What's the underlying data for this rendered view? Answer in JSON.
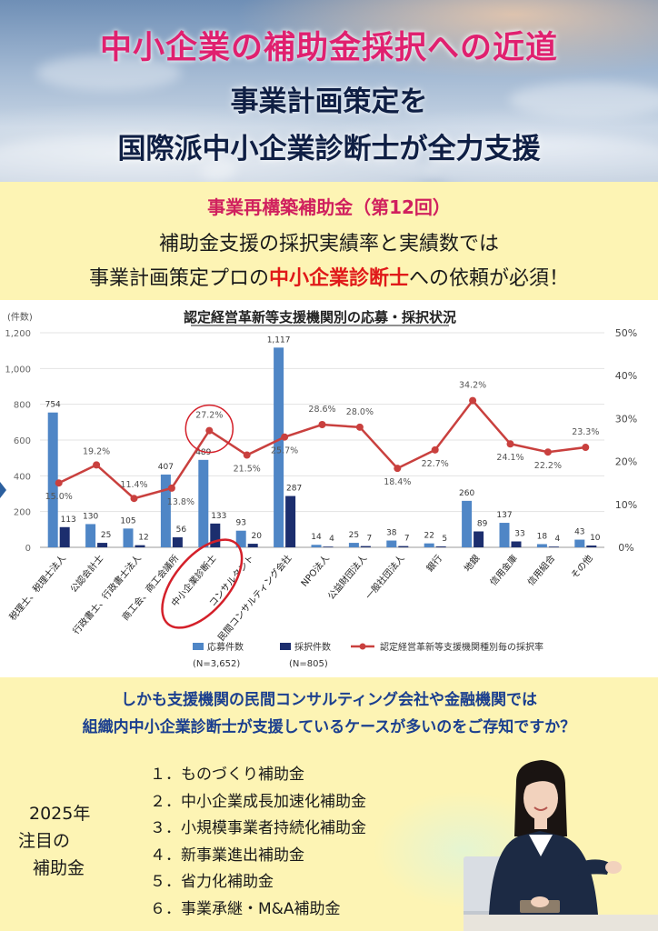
{
  "hero": {
    "title": "中小企業の補助金採択への近道",
    "subtitle_line1": "事業計画策定を",
    "subtitle_line2": "国際派中小企業診断士が全力支援"
  },
  "intro": {
    "heading": "事業再構築補助金（第12回）",
    "line1": "補助金支援の採択実績率と実績数では",
    "line2_pre": "事業計画策定プロの",
    "line2_highlight": "中小企業診断士",
    "line2_post": "への依頼が必須！"
  },
  "chart_data": {
    "type": "bar",
    "title": "認定経営革新等支援機関別の応募・採択状況",
    "ylabel": "(件数)",
    "ylim": [
      0,
      1200
    ],
    "y_ticks": [
      "0",
      "200",
      "400",
      "600",
      "800",
      "1,000",
      "1,200"
    ],
    "y2lim": [
      0,
      50
    ],
    "y2_ticks": [
      "0%",
      "10%",
      "20%",
      "30%",
      "40%",
      "50%"
    ],
    "categories": [
      "税理士、税理士法人",
      "公認会計士",
      "行政書士、行政書士法人",
      "商工会、商工会議所",
      "中小企業診断士",
      "コンサルタント",
      "民間コンサルティング会社",
      "NPO法人",
      "公益財団法人",
      "一般社団法人",
      "銀行",
      "地銀",
      "信用金庫",
      "信用組合",
      "その他"
    ],
    "series": [
      {
        "name": "応募件数",
        "values": [
          754,
          130,
          105,
          407,
          489,
          93,
          1117,
          14,
          25,
          38,
          22,
          260,
          137,
          18,
          43
        ],
        "labels": [
          "754",
          "130",
          "105",
          "407",
          "489",
          "93",
          "1,117",
          "14",
          "25",
          "38",
          "22",
          "260",
          "137",
          "18",
          "43"
        ]
      },
      {
        "name": "採択件数",
        "values": [
          113,
          25,
          12,
          56,
          133,
          20,
          287,
          4,
          7,
          7,
          5,
          89,
          33,
          4,
          10
        ],
        "labels": [
          "113",
          "25",
          "12",
          "56",
          "133",
          "20",
          "287",
          "4",
          "7",
          "7",
          "5",
          "89",
          "33",
          "4",
          "10"
        ]
      },
      {
        "name": "認定経営革新等支援機関種別毎の採択率",
        "values": [
          15.0,
          19.2,
          11.4,
          13.8,
          27.2,
          21.5,
          25.7,
          28.6,
          28.0,
          18.4,
          22.7,
          34.2,
          24.1,
          22.2,
          23.3
        ],
        "labels": [
          "15.0%",
          "19.2%",
          "11.4%",
          "13.8%",
          "27.2%",
          "21.5%",
          "25.7%",
          "28.6%",
          "28.0%",
          "18.4%",
          "22.7%",
          "34.2%",
          "24.1%",
          "22.2%",
          "23.3%"
        ]
      }
    ],
    "legend": {
      "applied_note": "(N=3,652)",
      "adopted_note": "(N=805)"
    },
    "colors": {
      "applied": "#4f86c6",
      "adopted": "#1c2e6e",
      "rate": "#c9403e",
      "highlight": "#d4202a"
    }
  },
  "question": {
    "line1": "しかも支援機関の民間コンサルティング会社や金融機関では",
    "line2": "組織内中小企業診断士が支援しているケースが多いのをご存知ですか？"
  },
  "bottom": {
    "label_line1": "2025年",
    "label_line2": "注目の",
    "label_line3": "補助金",
    "items": [
      "１．ものづくり補助金",
      "２．中小企業成長加速化補助金",
      "３．小規模事業者持続化補助金",
      "４．新事業進出補助金",
      "５．省力化補助金",
      "６．事業承継・M&A補助金"
    ]
  }
}
